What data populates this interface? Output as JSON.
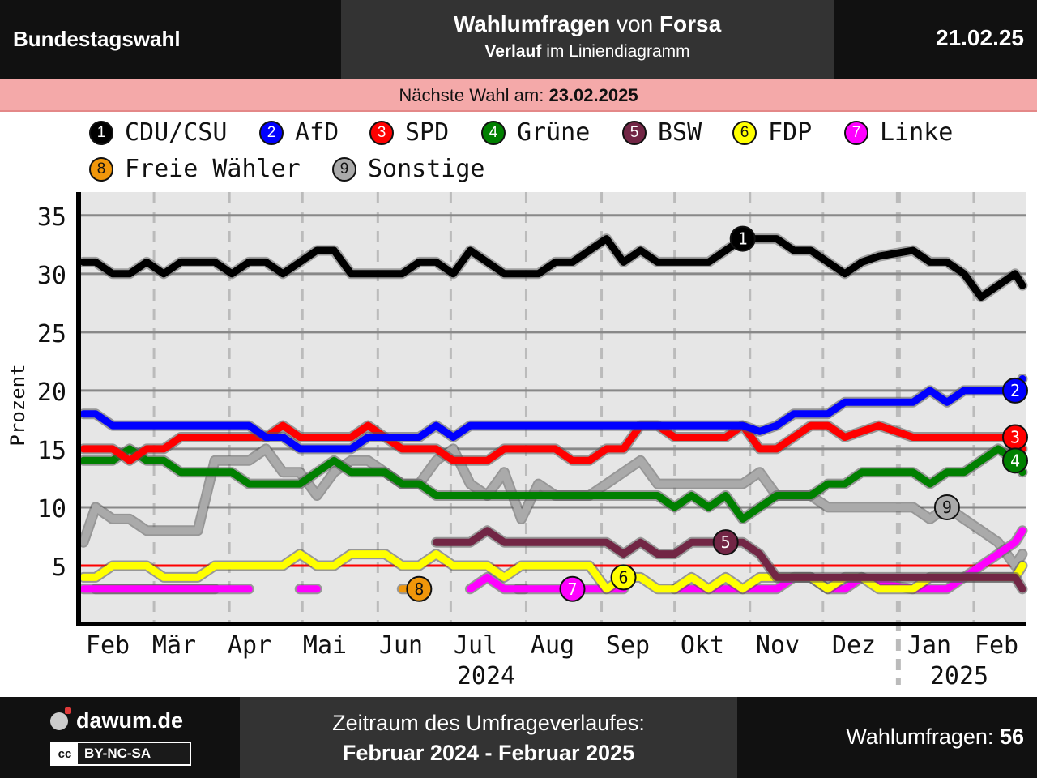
{
  "header": {
    "left_title": "Bundestagswahl",
    "center_bold_1": "Wahlumfragen",
    "center_plain_1": " von ",
    "center_bold_2": "Forsa",
    "center_sub_bold": "Verlauf",
    "center_sub_plain": " im Liniendiagramm",
    "date": "21.02.25"
  },
  "next_election": {
    "label": "Nächste Wahl am: ",
    "date": "23.02.2025"
  },
  "footer": {
    "brand": "dawum.de",
    "license": "BY-NC-SA",
    "license_badge": "cc",
    "period_label": "Zeitraum des Umfrageverlaufes:",
    "period_value": "Februar 2024 - Februar 2025",
    "count_label": "Wahlumfragen: ",
    "count_value": "56"
  },
  "chart_data": {
    "type": "line",
    "ylabel": "Prozent",
    "ylim": [
      0,
      37
    ],
    "yticks": [
      5,
      10,
      15,
      20,
      25,
      30,
      35
    ],
    "grid": true,
    "legend_position": "top",
    "months": [
      {
        "label": "Feb",
        "year": ""
      },
      {
        "label": "Mär",
        "year": ""
      },
      {
        "label": "Apr",
        "year": ""
      },
      {
        "label": "Mai",
        "year": ""
      },
      {
        "label": "Jun",
        "year": ""
      },
      {
        "label": "Jul",
        "year": "2024"
      },
      {
        "label": "Aug",
        "year": ""
      },
      {
        "label": "Sep",
        "year": ""
      },
      {
        "label": "Okt",
        "year": ""
      },
      {
        "label": "Nov",
        "year": ""
      },
      {
        "label": "Dez",
        "year": ""
      },
      {
        "label": "Jan",
        "year": "2025"
      },
      {
        "label": "Feb",
        "year": ""
      }
    ],
    "threshold": 5,
    "x": [
      "2024-02-01",
      "2024-02-06",
      "2024-02-13",
      "2024-02-20",
      "2024-02-27",
      "2024-03-05",
      "2024-03-12",
      "2024-03-19",
      "2024-03-26",
      "2024-04-02",
      "2024-04-09",
      "2024-04-16",
      "2024-04-23",
      "2024-04-30",
      "2024-05-07",
      "2024-05-14",
      "2024-05-21",
      "2024-05-28",
      "2024-06-04",
      "2024-06-11",
      "2024-06-18",
      "2024-06-25",
      "2024-07-02",
      "2024-07-09",
      "2024-07-16",
      "2024-07-23",
      "2024-07-30",
      "2024-08-06",
      "2024-08-13",
      "2024-08-20",
      "2024-08-27",
      "2024-09-03",
      "2024-09-10",
      "2024-09-17",
      "2024-09-24",
      "2024-10-01",
      "2024-10-08",
      "2024-10-15",
      "2024-10-22",
      "2024-10-29",
      "2024-11-05",
      "2024-11-12",
      "2024-11-19",
      "2024-11-26",
      "2024-12-03",
      "2024-12-10",
      "2024-12-17",
      "2024-12-24",
      "2025-01-07",
      "2025-01-14",
      "2025-01-21",
      "2025-01-28",
      "2025-02-04",
      "2025-02-11",
      "2025-02-18",
      "2025-02-21"
    ],
    "series": [
      {
        "name": "CDU/CSU",
        "badge": "1",
        "color": "#000000",
        "text_color": "#ffffff",
        "values": [
          31,
          31,
          30,
          30,
          31,
          30,
          31,
          31,
          31,
          30,
          31,
          31,
          30,
          31,
          32,
          32,
          30,
          30,
          30,
          30,
          31,
          31,
          30,
          32,
          31,
          30,
          30,
          30,
          31,
          31,
          32,
          33,
          31,
          32,
          31,
          31,
          31,
          31,
          32,
          33,
          33,
          33,
          32,
          32,
          31,
          30,
          31,
          31.5,
          32,
          31,
          31,
          30,
          28,
          29,
          30,
          29
        ]
      },
      {
        "name": "AfD",
        "badge": "2",
        "color": "#0000ff",
        "text_color": "#ffffff",
        "values": [
          18,
          18,
          17,
          17,
          17,
          17,
          17,
          17,
          17,
          17,
          17,
          16,
          16,
          15,
          15,
          15,
          15,
          16,
          16,
          16,
          16,
          17,
          16,
          17,
          17,
          17,
          17,
          17,
          17,
          17,
          17,
          17,
          17,
          17,
          17,
          17,
          17,
          17,
          17,
          17,
          16.5,
          17,
          18,
          18,
          18,
          19,
          19,
          19,
          19,
          20,
          19,
          20,
          20,
          20,
          20,
          21
        ]
      },
      {
        "name": "SPD",
        "badge": "3",
        "color": "#ff0000",
        "text_color": "#ffffff",
        "values": [
          15,
          15,
          15,
          14,
          15,
          15,
          16,
          16,
          16,
          16,
          16,
          16,
          17,
          16,
          16,
          16,
          16,
          17,
          16,
          15,
          15,
          15,
          14,
          14,
          14,
          15,
          15,
          15,
          15,
          14,
          14,
          15,
          15,
          17,
          17,
          16,
          16,
          16,
          16,
          17,
          15,
          15,
          16,
          17,
          17,
          16,
          16.5,
          17,
          16,
          16,
          16,
          16,
          16,
          16,
          16,
          15
        ]
      },
      {
        "name": "Grüne",
        "badge": "4",
        "color": "#008000",
        "text_color": "#ffffff",
        "values": [
          14,
          14,
          14,
          15,
          14,
          14,
          13,
          13,
          13,
          13,
          12,
          12,
          12,
          12,
          13,
          14,
          13,
          13,
          13,
          12,
          12,
          11,
          11,
          11,
          11,
          11,
          11,
          11,
          11,
          11,
          11,
          11,
          11,
          11,
          11,
          10,
          11,
          10,
          11,
          9,
          10,
          11,
          11,
          11,
          12,
          12,
          13,
          13,
          13,
          12,
          13,
          13,
          14,
          15,
          14,
          13
        ]
      },
      {
        "name": "BSW",
        "badge": "5",
        "color": "#722645",
        "text_color": "#ffffff",
        "values": [
          null,
          null,
          null,
          null,
          null,
          null,
          null,
          null,
          null,
          null,
          null,
          null,
          null,
          null,
          null,
          null,
          null,
          null,
          null,
          null,
          null,
          7,
          7,
          7,
          8,
          7,
          7,
          7,
          7,
          7,
          7,
          7,
          6,
          7,
          6,
          6,
          7,
          7,
          7,
          7,
          6,
          4,
          4,
          4,
          4,
          4,
          4,
          4,
          4,
          4,
          4,
          4,
          4,
          4,
          4,
          3
        ]
      },
      {
        "name": "FDP",
        "badge": "6",
        "color": "#ffff00",
        "text_color": "#111111",
        "values": [
          4,
          4,
          5,
          5,
          5,
          4,
          4,
          4,
          5,
          5,
          5,
          5,
          5,
          6,
          5,
          5,
          6,
          6,
          6,
          5,
          5,
          6,
          5,
          5,
          5,
          4,
          5,
          5,
          5,
          5,
          5,
          3,
          4,
          4,
          3,
          3,
          4,
          3,
          4,
          3,
          4,
          4,
          4,
          4,
          3,
          4,
          4,
          3,
          3,
          4,
          4,
          4,
          4,
          4,
          4,
          5
        ]
      },
      {
        "name": "Linke",
        "badge": "7",
        "color": "#ff00ff",
        "text_color": "#ffffff",
        "values": [
          3,
          3,
          3,
          3,
          3,
          3,
          3,
          3,
          3,
          3,
          3,
          null,
          null,
          3,
          3,
          null,
          null,
          null,
          null,
          null,
          null,
          null,
          null,
          3,
          4,
          3,
          3,
          3,
          3,
          3,
          3,
          3,
          3,
          null,
          null,
          3,
          3,
          3,
          3,
          3,
          3,
          3,
          4,
          4,
          3,
          3,
          4,
          3.5,
          3,
          3,
          3,
          4,
          5,
          6,
          7,
          8
        ]
      },
      {
        "name": "Freie Wähler",
        "badge": "8",
        "color": "#f0960a",
        "text_color": "#111111",
        "values": [
          null,
          3,
          3,
          3,
          3,
          3,
          3,
          3,
          3,
          null,
          null,
          null,
          null,
          null,
          null,
          null,
          null,
          null,
          null,
          3,
          3,
          null,
          null,
          null,
          null,
          null,
          3,
          null,
          null,
          null,
          null,
          null,
          null,
          null,
          null,
          null,
          null,
          null,
          null,
          null,
          null,
          null,
          null,
          null,
          null,
          null,
          null,
          null,
          null,
          null,
          null,
          null,
          null,
          null,
          null,
          null
        ]
      },
      {
        "name": "Sonstige",
        "badge": "9",
        "color": "#aaaaaa",
        "text_color": "#111111",
        "values": [
          7,
          10,
          9,
          9,
          8,
          8,
          8,
          8,
          14,
          14,
          14,
          15,
          13,
          13,
          11,
          13,
          14,
          14,
          13,
          12,
          12,
          14,
          15,
          12,
          11,
          13,
          9,
          12,
          11,
          11,
          11,
          12,
          13,
          14,
          12,
          12,
          12,
          12,
          12,
          12,
          13,
          11,
          11,
          11,
          10,
          10,
          10,
          10,
          10,
          9,
          10,
          9,
          8,
          7,
          5,
          6
        ]
      }
    ],
    "label_positions": [
      {
        "series": 0,
        "index": 39
      },
      {
        "series": 1,
        "index": 54
      },
      {
        "series": 2,
        "index": 54
      },
      {
        "series": 3,
        "index": 54
      },
      {
        "series": 4,
        "index": 38
      },
      {
        "series": 5,
        "index": 32
      },
      {
        "series": 6,
        "index": 29
      },
      {
        "series": 7,
        "index": 20
      },
      {
        "series": 8,
        "index": 50
      }
    ]
  }
}
